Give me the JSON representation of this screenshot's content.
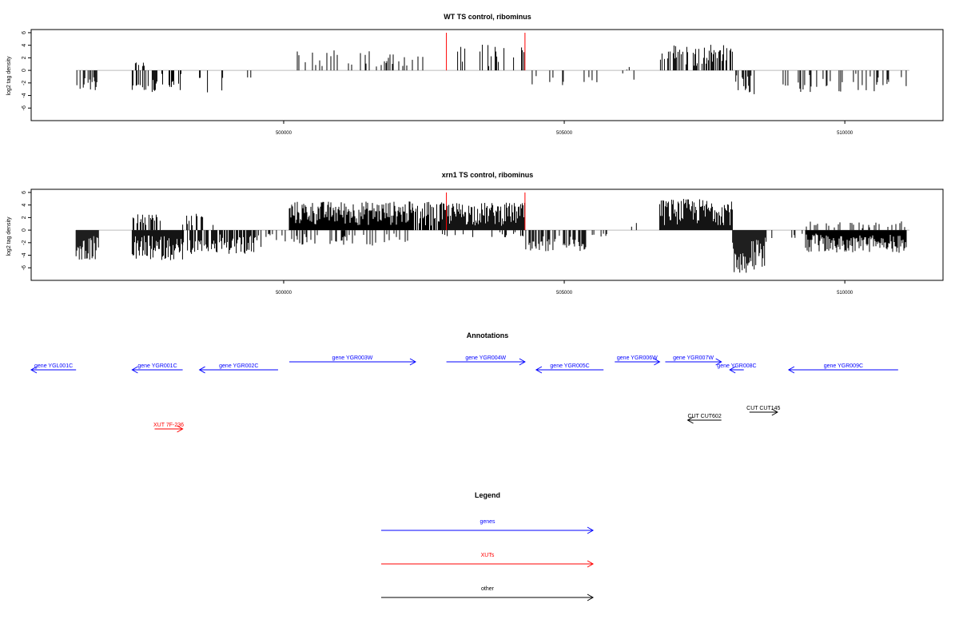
{
  "chart_data": [
    {
      "type": "bar",
      "title": "WT TS control, ribominus",
      "ylabel": "log2 tag density",
      "xlim": [
        495500,
        511750
      ],
      "ylim": [
        -8,
        6.5
      ],
      "x_ticks": [
        500000,
        505000,
        510000
      ],
      "y_ticks": [
        -6,
        -4,
        -2,
        0,
        2,
        4,
        6
      ],
      "markers": [
        502900,
        504300
      ],
      "regions": [
        {
          "from": 496300,
          "to": 496700,
          "sign": -1,
          "peak": 3.2,
          "density": 0.16
        },
        {
          "from": 497300,
          "to": 497550,
          "sign": 1,
          "peak": 1.6,
          "density": 0.07
        },
        {
          "from": 497300,
          "to": 497800,
          "sign": -1,
          "peak": 3.6,
          "density": 0.12
        },
        {
          "from": 497800,
          "to": 498200,
          "sign": -1,
          "peak": 3.4,
          "density": 0.09
        },
        {
          "from": 498500,
          "to": 498950,
          "sign": -1,
          "peak": 3.8,
          "density": 0.05
        },
        {
          "from": 499150,
          "to": 499300,
          "sign": -1,
          "peak": 3.0,
          "density": 0.03
        },
        {
          "from": 499300,
          "to": 499500,
          "sign": -1,
          "peak": 2.0,
          "density": 0.03
        },
        {
          "from": 500100,
          "to": 502500,
          "sign": 1,
          "peak": 3.2,
          "density": 0.05
        },
        {
          "from": 502900,
          "to": 504300,
          "sign": 1,
          "peak": 4.2,
          "density": 0.04
        },
        {
          "from": 504300,
          "to": 505600,
          "sign": -1,
          "peak": 2.4,
          "density": 0.04
        },
        {
          "from": 505700,
          "to": 506300,
          "sign": -1,
          "peak": 1.5,
          "density": 0.02
        },
        {
          "from": 506000,
          "to": 506300,
          "sign": 1,
          "peak": 0.8,
          "density": 0.02
        },
        {
          "from": 506700,
          "to": 508000,
          "sign": 1,
          "peak": 4.2,
          "density": 0.12
        },
        {
          "from": 508000,
          "to": 508500,
          "sign": -1,
          "peak": 3.8,
          "density": 0.09
        },
        {
          "from": 508900,
          "to": 511100,
          "sign": -1,
          "peak": 3.5,
          "density": 0.06
        }
      ]
    },
    {
      "type": "bar",
      "title": "xrn1 TS control, ribominus",
      "ylabel": "log2 tag density",
      "xlim": [
        495500,
        511750
      ],
      "ylim": [
        -8,
        6.5
      ],
      "x_ticks": [
        500000,
        505000,
        510000
      ],
      "y_ticks": [
        -6,
        -4,
        -2,
        0,
        2,
        4,
        6
      ],
      "markers": [
        502900,
        504300
      ],
      "regions": [
        {
          "from": 496300,
          "to": 496700,
          "sign": -1,
          "peak": 4.8,
          "density": 0.3
        },
        {
          "from": 497300,
          "to": 497800,
          "sign": 1,
          "peak": 2.6,
          "density": 0.12
        },
        {
          "from": 497300,
          "to": 498200,
          "sign": -1,
          "peak": 4.8,
          "density": 0.3
        },
        {
          "from": 498200,
          "to": 498800,
          "sign": 1,
          "peak": 2.6,
          "density": 0.06
        },
        {
          "from": 498200,
          "to": 499600,
          "sign": -1,
          "peak": 3.8,
          "density": 0.18
        },
        {
          "from": 499600,
          "to": 500100,
          "sign": -1,
          "peak": 1.8,
          "density": 0.05
        },
        {
          "from": 500100,
          "to": 502300,
          "sign": 1,
          "peak": 4.6,
          "density": 0.28
        },
        {
          "from": 500100,
          "to": 502300,
          "sign": -1,
          "peak": 2.5,
          "density": 0.06
        },
        {
          "from": 502300,
          "to": 502800,
          "sign": 1,
          "peak": 4.6,
          "density": 0.2
        },
        {
          "from": 502800,
          "to": 504300,
          "sign": 1,
          "peak": 4.4,
          "density": 0.4
        },
        {
          "from": 502800,
          "to": 504300,
          "sign": -1,
          "peak": 1.2,
          "density": 0.05
        },
        {
          "from": 504300,
          "to": 505400,
          "sign": -1,
          "peak": 3.4,
          "density": 0.16
        },
        {
          "from": 505400,
          "to": 505800,
          "sign": -1,
          "peak": 1.2,
          "density": 0.04
        },
        {
          "from": 506000,
          "to": 506300,
          "sign": 1,
          "peak": 1.2,
          "density": 0.03
        },
        {
          "from": 506700,
          "to": 508000,
          "sign": 1,
          "peak": 5.0,
          "density": 0.35
        },
        {
          "from": 508000,
          "to": 508600,
          "sign": -1,
          "peak": 6.8,
          "density": 0.4
        },
        {
          "from": 508600,
          "to": 509300,
          "sign": -1,
          "peak": 2.0,
          "density": 0.06
        },
        {
          "from": 509300,
          "to": 511100,
          "sign": -1,
          "peak": 3.6,
          "density": 0.28
        },
        {
          "from": 509300,
          "to": 511100,
          "sign": 1,
          "peak": 1.4,
          "density": 0.05
        }
      ]
    }
  ],
  "annotations": {
    "title": "Annotations",
    "features": [
      {
        "label": "gene YGL001C",
        "from": 496300,
        "to": 495500,
        "row": 1,
        "color": "#0000ff"
      },
      {
        "label": "gene YGR001C",
        "from": 498200,
        "to": 497300,
        "row": 1,
        "color": "#0000ff"
      },
      {
        "label": "gene YGR002C",
        "from": 499900,
        "to": 498500,
        "row": 1,
        "color": "#0000ff"
      },
      {
        "label": "gene YGR003W",
        "from": 500100,
        "to": 502350,
        "row": 0,
        "color": "#0000ff"
      },
      {
        "label": "gene YGR004W",
        "from": 502900,
        "to": 504300,
        "row": 0,
        "color": "#0000ff"
      },
      {
        "label": "gene YGR005C",
        "from": 505700,
        "to": 504500,
        "row": 1,
        "color": "#0000ff"
      },
      {
        "label": "gene YGR006W",
        "from": 505900,
        "to": 506700,
        "row": 0,
        "color": "#0000ff"
      },
      {
        "label": "gene YGR007W",
        "from": 506800,
        "to": 507800,
        "row": 0,
        "color": "#0000ff"
      },
      {
        "label": "gene YGR008C",
        "from": 508200,
        "to": 507950,
        "row": 1,
        "color": "#0000ff"
      },
      {
        "label": "gene YGR009C",
        "from": 510950,
        "to": 509000,
        "row": 1,
        "color": "#0000ff"
      },
      {
        "label": "XUT 7F-236",
        "from": 497700,
        "to": 498200,
        "row": 4,
        "color": "#ff0000"
      },
      {
        "label": "CUT CUT602",
        "from": 507800,
        "to": 507200,
        "row": 3,
        "color": "#000000"
      },
      {
        "label": "CUT CUT145",
        "from": 508300,
        "to": 508800,
        "row": 2,
        "color": "#000000"
      }
    ]
  },
  "legend": {
    "title": "Legend",
    "items": [
      {
        "label": "genes",
        "color": "#0000ff"
      },
      {
        "label": "XUTs",
        "color": "#ff0000"
      },
      {
        "label": "other",
        "color": "#000000"
      }
    ]
  }
}
